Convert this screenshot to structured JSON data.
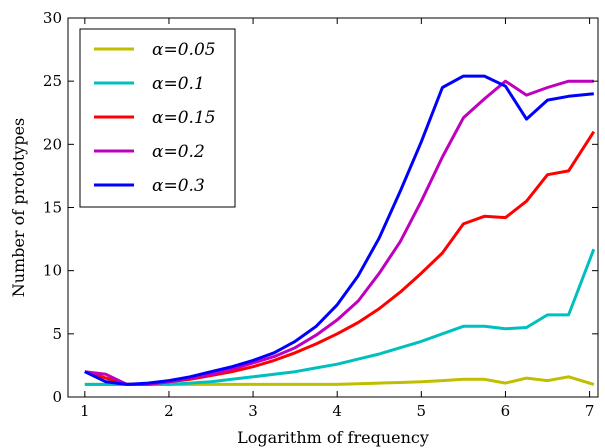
{
  "chart_data": {
    "type": "line",
    "xlabel": "Logarithm of frequency",
    "ylabel": "Number of prototypes",
    "xlim": [
      0.8,
      7.1
    ],
    "ylim": [
      0,
      30
    ],
    "xticks": [
      1,
      2,
      3,
      4,
      5,
      6,
      7
    ],
    "yticks": [
      0,
      5,
      10,
      15,
      20,
      25,
      30
    ],
    "grid": false,
    "legend_position": "top-left",
    "x": [
      1.0,
      1.25,
      1.5,
      1.75,
      2.0,
      2.25,
      2.5,
      2.75,
      3.0,
      3.25,
      3.5,
      3.75,
      4.0,
      4.25,
      4.5,
      4.75,
      5.0,
      5.25,
      5.5,
      5.75,
      6.0,
      6.25,
      6.5,
      6.75,
      7.05
    ],
    "series": [
      {
        "name": "α=0.05",
        "color": "#bfbf00",
        "values": [
          1.0,
          1.0,
          1.0,
          1.0,
          1.0,
          1.0,
          1.0,
          1.0,
          1.0,
          1.0,
          1.0,
          1.0,
          1.0,
          1.05,
          1.1,
          1.15,
          1.2,
          1.3,
          1.4,
          1.4,
          1.1,
          1.5,
          1.3,
          1.6,
          1.0
        ]
      },
      {
        "name": "α=0.1",
        "color": "#00bfbf",
        "values": [
          1.0,
          1.0,
          1.0,
          1.0,
          1.0,
          1.1,
          1.2,
          1.4,
          1.6,
          1.8,
          2.0,
          2.3,
          2.6,
          3.0,
          3.4,
          3.9,
          4.4,
          5.0,
          5.6,
          5.6,
          5.4,
          5.5,
          6.5,
          6.5,
          11.7
        ]
      },
      {
        "name": "α=0.15",
        "color": "#ff0000",
        "values": [
          2.0,
          1.5,
          1.0,
          1.0,
          1.2,
          1.4,
          1.7,
          2.0,
          2.4,
          2.9,
          3.5,
          4.2,
          5.0,
          5.9,
          7.0,
          8.3,
          9.8,
          11.4,
          13.7,
          14.3,
          14.2,
          15.5,
          17.6,
          17.9,
          21.0
        ]
      },
      {
        "name": "α=0.2",
        "color": "#bf00bf",
        "values": [
          2.0,
          1.8,
          1.0,
          1.0,
          1.2,
          1.5,
          1.8,
          2.2,
          2.7,
          3.2,
          3.9,
          4.9,
          6.1,
          7.6,
          9.8,
          12.3,
          15.5,
          19.0,
          22.1,
          23.6,
          25.0,
          23.9,
          24.5,
          25.0,
          25.0
        ]
      },
      {
        "name": "α=0.3",
        "color": "#0000ff",
        "values": [
          2.0,
          1.2,
          1.0,
          1.1,
          1.3,
          1.6,
          2.0,
          2.4,
          2.9,
          3.5,
          4.4,
          5.6,
          7.3,
          9.6,
          12.6,
          16.3,
          20.2,
          24.5,
          25.4,
          25.4,
          24.6,
          22.0,
          23.5,
          23.8,
          24.0
        ]
      }
    ]
  }
}
